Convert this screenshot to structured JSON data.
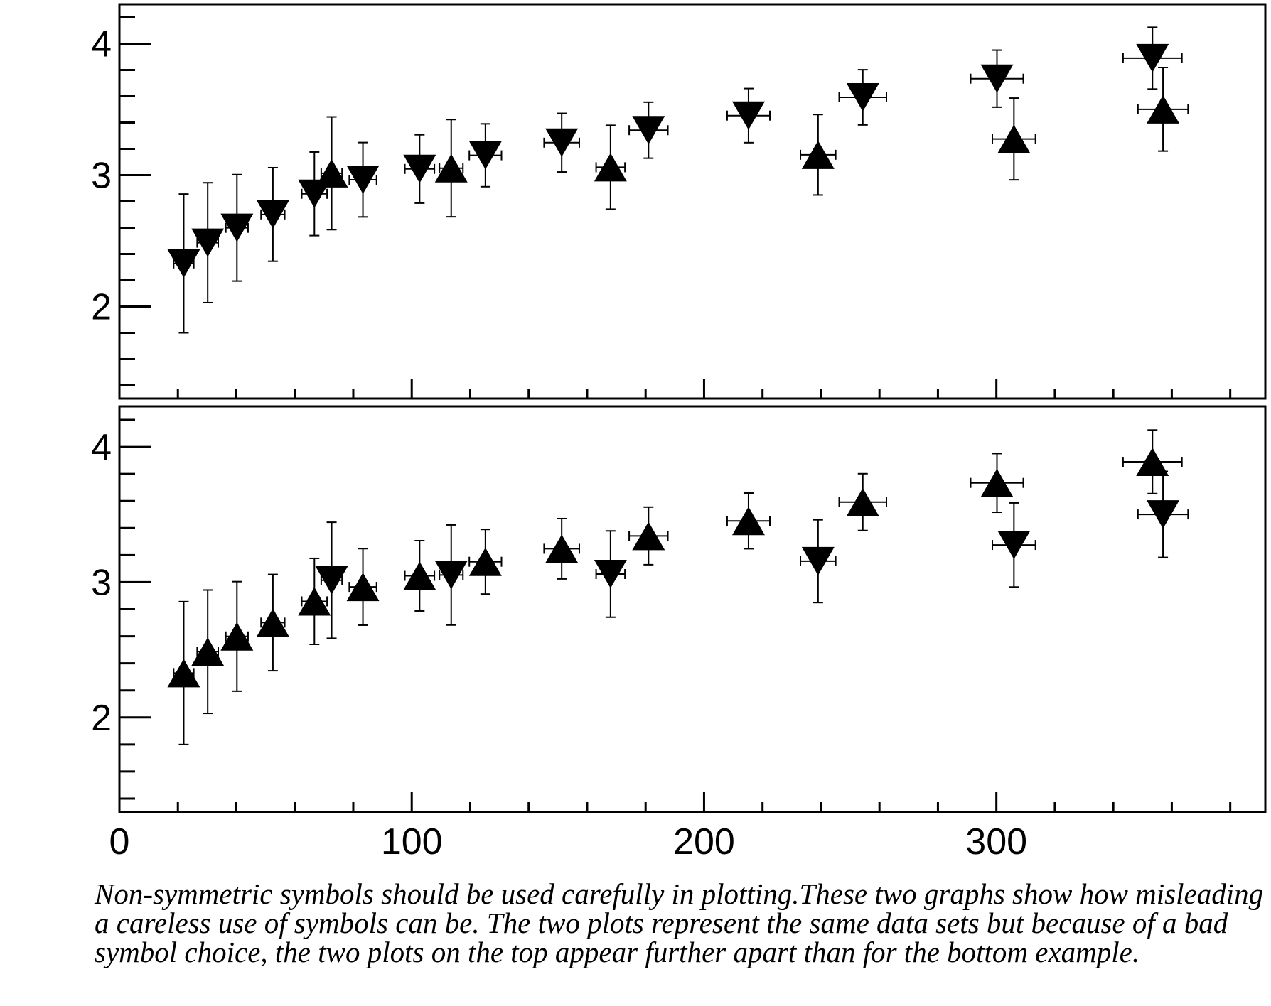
{
  "figure": {
    "background_color": "#ffffff",
    "ink_color": "#000000",
    "marker_color": "#000000"
  },
  "caption": {
    "lines": [
      "Non-symmetric symbols should be used carefully in plotting.These two graphs show how misleading",
      "a careless use of symbols can be. The two plots represent the same data sets but because of a bad",
      "symbol choice, the two plots on the top appear further apart than for the bottom example."
    ]
  },
  "chart_data": [
    {
      "type": "scatter",
      "panel": "top",
      "title": "",
      "xlabel": "",
      "ylabel": "",
      "xlim": [
        0,
        392
      ],
      "ylim": [
        1.3,
        4.3
      ],
      "grid": false,
      "legend": null,
      "x_major_ticks": [
        0,
        100,
        200,
        300
      ],
      "x_tick_labels": [],
      "x_minor_step": 20,
      "y_major_ticks": [
        2,
        3,
        4
      ],
      "y_tick_labels": [
        "2",
        "3",
        "4"
      ],
      "y_minor_step": 0.2,
      "series": [
        {
          "name": "dense-series-14-points",
          "marker": "triangle-down",
          "color": "#000000",
          "x": [
            353.4,
            300.2,
            254.3,
            215.2,
            181.0,
            151.3,
            125.2,
            102.7,
            83.3,
            66.7,
            52.5,
            40.2,
            30.2,
            22.0
          ],
          "y": [
            3.89,
            3.734,
            3.592,
            3.453,
            3.342,
            3.247,
            3.151,
            3.047,
            2.965,
            2.858,
            2.701,
            2.599,
            2.486,
            2.328
          ],
          "ex": [
            10.068,
            9.004,
            8.086,
            7.304,
            6.62,
            6.026,
            5.504,
            5.054,
            4.666,
            4.334,
            4.05,
            3.804,
            3.604,
            3.44
          ],
          "ey": [
            0.235,
            0.217,
            0.21,
            0.206,
            0.213,
            0.223,
            0.239,
            0.26,
            0.283,
            0.318,
            0.356,
            0.405,
            0.456,
            0.528
          ]
        },
        {
          "name": "sparse-series-6-points",
          "marker": "triangle-up",
          "color": "#000000",
          "x": [
            357.0,
            306.0,
            239.0,
            168.0,
            113.5,
            72.6
          ],
          "y": [
            3.501,
            3.275,
            3.155,
            3.06,
            3.053,
            3.014
          ],
          "ex": [
            8.572,
            7.374,
            6.028,
            4.932,
            4.016,
            3.567
          ],
          "ey": [
            0.318,
            0.311,
            0.306,
            0.319,
            0.37,
            0.429
          ]
        }
      ]
    },
    {
      "type": "scatter",
      "panel": "bottom",
      "title": "",
      "xlabel": "",
      "ylabel": "",
      "xlim": [
        0,
        392
      ],
      "ylim": [
        1.3,
        4.3
      ],
      "grid": false,
      "legend": null,
      "x_major_ticks": [
        0,
        100,
        200,
        300
      ],
      "x_tick_labels": [
        "0",
        "100",
        "200",
        "300"
      ],
      "x_minor_step": 20,
      "y_major_ticks": [
        2,
        3,
        4
      ],
      "y_tick_labels": [
        "2",
        "3",
        "4"
      ],
      "y_minor_step": 0.2,
      "series": [
        {
          "name": "dense-series-14-points",
          "marker": "triangle-up",
          "color": "#000000",
          "x": [
            353.4,
            300.2,
            254.3,
            215.2,
            181.0,
            151.3,
            125.2,
            102.7,
            83.3,
            66.7,
            52.5,
            40.2,
            30.2,
            22.0
          ],
          "y": [
            3.89,
            3.734,
            3.592,
            3.453,
            3.342,
            3.247,
            3.151,
            3.047,
            2.965,
            2.858,
            2.701,
            2.599,
            2.486,
            2.328
          ],
          "ex": [
            10.068,
            9.004,
            8.086,
            7.304,
            6.62,
            6.026,
            5.504,
            5.054,
            4.666,
            4.334,
            4.05,
            3.804,
            3.604,
            3.44
          ],
          "ey": [
            0.235,
            0.217,
            0.21,
            0.206,
            0.213,
            0.223,
            0.239,
            0.26,
            0.283,
            0.318,
            0.356,
            0.405,
            0.456,
            0.528
          ]
        },
        {
          "name": "sparse-series-6-points",
          "marker": "triangle-down",
          "color": "#000000",
          "x": [
            357.0,
            306.0,
            239.0,
            168.0,
            113.5,
            72.6
          ],
          "y": [
            3.501,
            3.275,
            3.155,
            3.06,
            3.053,
            3.014
          ],
          "ex": [
            8.572,
            7.374,
            6.028,
            4.932,
            4.016,
            3.567
          ],
          "ey": [
            0.318,
            0.311,
            0.306,
            0.319,
            0.37,
            0.429
          ]
        }
      ]
    }
  ]
}
